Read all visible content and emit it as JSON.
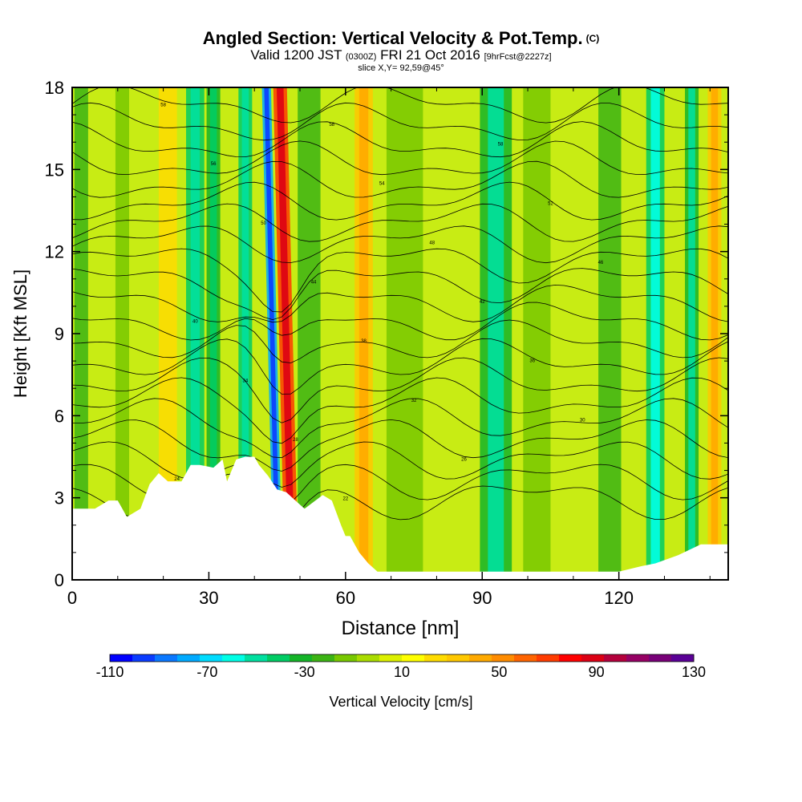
{
  "title": {
    "main": "Angled Section: Vertical Velocity & Pot.Temp.",
    "main_tag": "(C)",
    "valid_prefix": "Valid 1200 JST",
    "valid_utc": "(0300Z)",
    "valid_date": "FRI 21 Oct 2016",
    "forecast": "[9hrFcst@2227z]",
    "slice": "slice X,Y= 92,59@45°"
  },
  "chart_data": {
    "type": "heatmap",
    "xlabel": "Distance [nm]",
    "ylabel": "Height [Kft MSL]",
    "xlim": [
      0,
      144
    ],
    "ylim": [
      0,
      18
    ],
    "x_ticks": [
      "0",
      "30",
      "60",
      "90",
      "120"
    ],
    "x_tick_values": [
      0,
      30,
      60,
      90,
      120
    ],
    "y_ticks": [
      "0",
      "3",
      "6",
      "9",
      "12",
      "15",
      "18"
    ],
    "y_tick_values": [
      0,
      3,
      6,
      9,
      12,
      15,
      18
    ],
    "colorbar": {
      "label": "Vertical Velocity [cm/s]",
      "tick_labels": [
        "-110",
        "-70",
        "-30",
        "10",
        "50",
        "90",
        "130"
      ],
      "tick_values": [
        -110,
        -70,
        -30,
        10,
        50,
        90,
        130
      ],
      "colors": [
        "#0000ff",
        "#0a3cff",
        "#0a78ff",
        "#00aaff",
        "#00dcff",
        "#00ffe6",
        "#00e0a0",
        "#00cc64",
        "#14b428",
        "#3cb414",
        "#78c800",
        "#aadc00",
        "#dcf000",
        "#ffff00",
        "#ffdc00",
        "#ffc800",
        "#ffaa00",
        "#ff8c00",
        "#ff6400",
        "#ff3c00",
        "#ff0000",
        "#dc0014",
        "#b4003c",
        "#960064",
        "#780078",
        "#5a0096"
      ]
    },
    "terrain": {
      "x": [
        0,
        5,
        8,
        10,
        11,
        12,
        15,
        17,
        19,
        21,
        24,
        25,
        26,
        28,
        31,
        33,
        34,
        36,
        38,
        40,
        41,
        43,
        45,
        47,
        49,
        51,
        55,
        57,
        59,
        60,
        61,
        62,
        63,
        65,
        67,
        70,
        75,
        80,
        90,
        100,
        110,
        113,
        120,
        125,
        128,
        133,
        138,
        144
      ],
      "height_kft": [
        2.6,
        2.6,
        2.9,
        2.9,
        2.6,
        2.3,
        2.6,
        3.5,
        3.9,
        3.6,
        3.6,
        3.9,
        4.2,
        4.2,
        4.1,
        4.4,
        3.6,
        4.4,
        4.5,
        4.5,
        4.2,
        3.8,
        3.3,
        3.2,
        2.9,
        2.6,
        3.1,
        2.9,
        2.0,
        1.6,
        1.6,
        1.3,
        1.0,
        0.6,
        0.3,
        0.3,
        0.3,
        0.3,
        0.3,
        0.3,
        0.3,
        0.3,
        0.3,
        0.5,
        0.6,
        0.9,
        1.3,
        1.3
      ]
    },
    "background_color": "#c8ec14",
    "velocity_features": [
      {
        "x": 2,
        "w": 3,
        "v": -20
      },
      {
        "x": 11,
        "w": 3,
        "v": -15
      },
      {
        "x": 21,
        "w": 4,
        "v": 20
      },
      {
        "x": 27,
        "w": 4,
        "v": -40
      },
      {
        "x": 31,
        "w": 3,
        "v": -30
      },
      {
        "x": 38,
        "w": 3,
        "v": -40
      },
      {
        "x": 42,
        "w": 2,
        "v": -75
      },
      {
        "x": 45,
        "w": 3,
        "v": 70
      },
      {
        "x": 52,
        "w": 5,
        "v": -20
      },
      {
        "x": 64,
        "w": 4,
        "v": 30
      },
      {
        "x": 73,
        "w": 8,
        "v": -10
      },
      {
        "x": 93,
        "w": 7,
        "v": -35
      },
      {
        "x": 102,
        "w": 6,
        "v": -15
      },
      {
        "x": 118,
        "w": 5,
        "v": -20
      },
      {
        "x": 128,
        "w": 4,
        "v": -45
      },
      {
        "x": 136,
        "w": 3,
        "v": -35
      },
      {
        "x": 141,
        "w": 3,
        "v": 35
      }
    ],
    "isentrope_labels": [
      "58",
      "58",
      "58",
      "56",
      "54",
      "52",
      "50",
      "48",
      "46",
      "44",
      "42",
      "40",
      "38",
      "36",
      "34",
      "32",
      "30",
      "28",
      "26",
      "24",
      "22"
    ]
  }
}
